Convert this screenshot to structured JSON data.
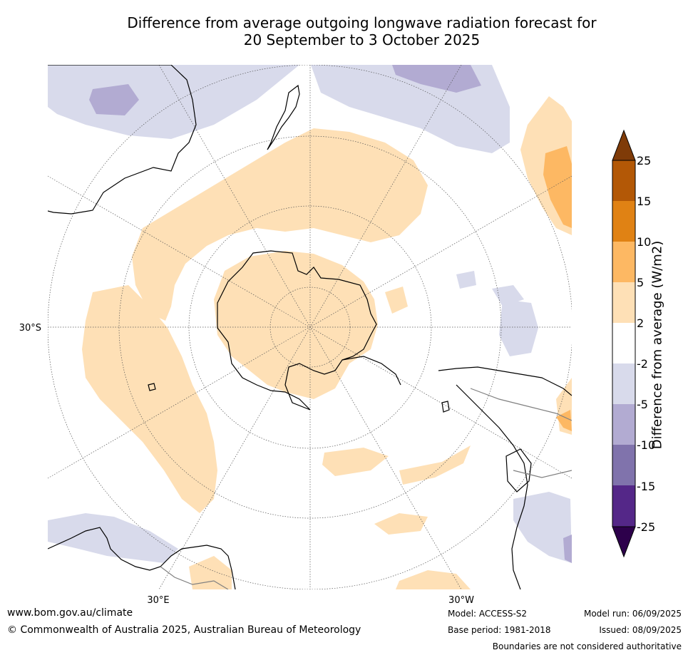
{
  "title": {
    "line1": "Difference from average outgoing longwave radiation forecast for",
    "line2": "20 September to 3 October 2025"
  },
  "map": {
    "projection": "south-polar stereographic",
    "axis_labels": {
      "lat_left": "30°S",
      "lon_bottom_left": "30°E",
      "lon_bottom_right": "30°W"
    }
  },
  "colorbar": {
    "label": "Difference from average (W/m2)",
    "ticks": [
      "25",
      "15",
      "10",
      "5",
      "2",
      "-2",
      "-5",
      "-10",
      "-15",
      "-25"
    ],
    "colors": {
      "above_25": "#7f3b08",
      "15_25": "#b35806",
      "10_15": "#e08214",
      "5_10": "#fdb863",
      "2_5": "#fee0b6",
      "m2_2": "#ffffff",
      "m5_m2": "#d8daeb",
      "m10_m5": "#b2abd2",
      "m15_m10": "#8073ac",
      "m25_m15": "#542788",
      "below_m25": "#2d004b"
    }
  },
  "footer": {
    "website": "www.bom.gov.au/climate",
    "copyright": "© Commonwealth of Australia 2025, Australian Bureau of Meteorology",
    "model": "Model: ACCESS-S2",
    "base_period": "Base period: 1981-2018",
    "model_run": "Model run: 06/09/2025",
    "issued": "Issued: 08/09/2025",
    "disclaimer": "Boundaries are not considered authoritative"
  }
}
